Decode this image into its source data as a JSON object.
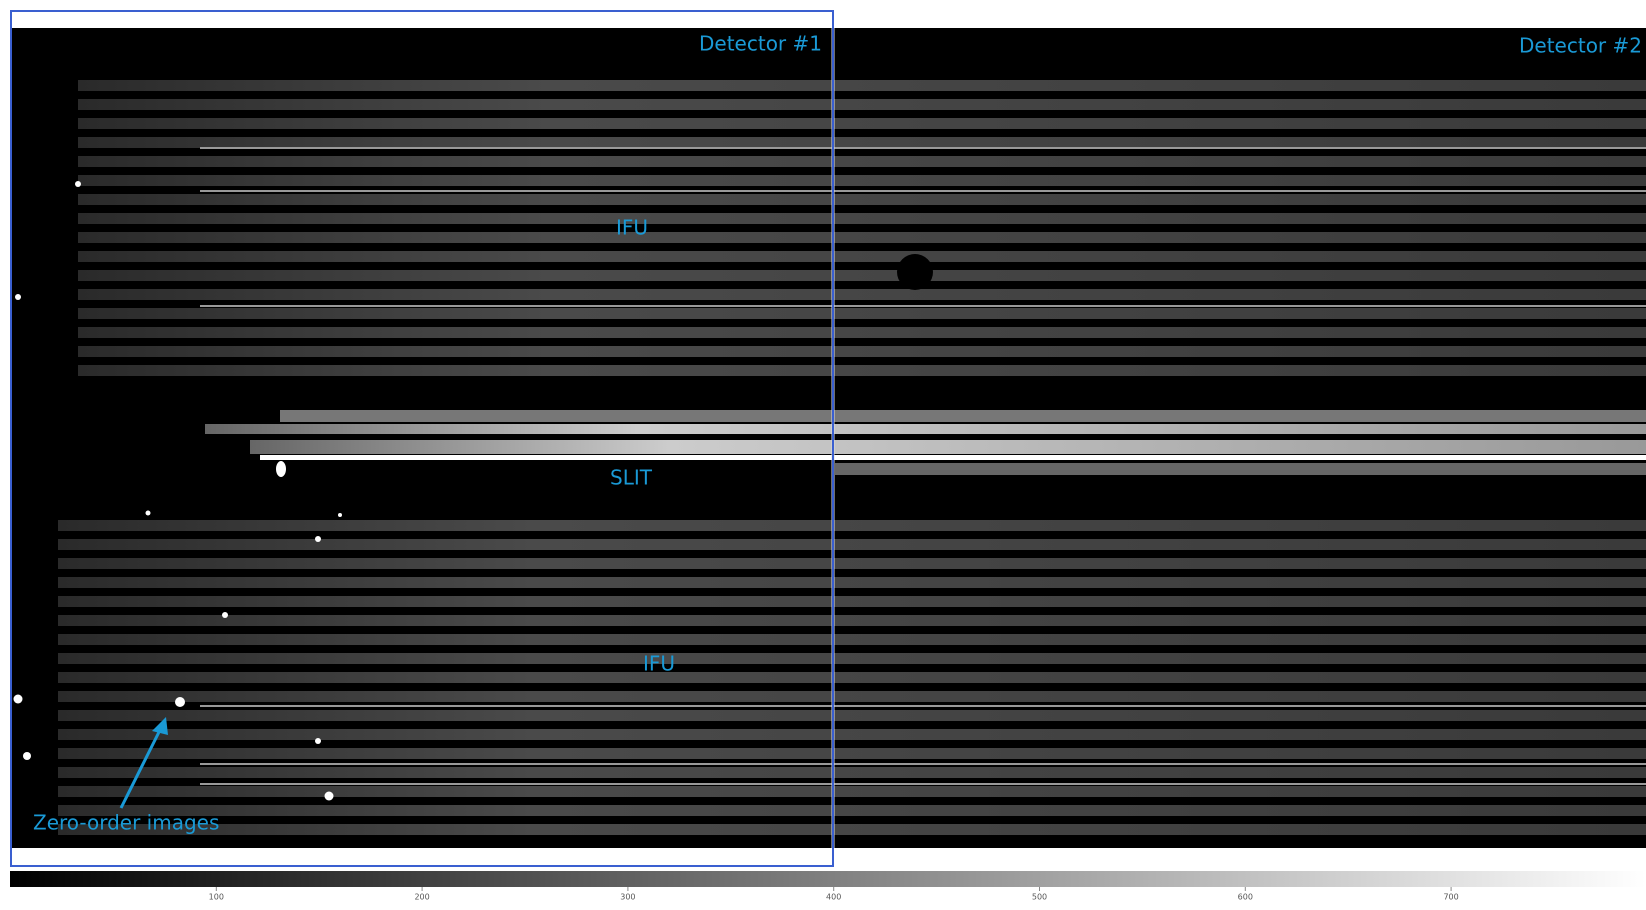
{
  "image": {
    "detectors": [
      "Detector #1",
      "Detector #2"
    ],
    "regions": {
      "upper": "IFU",
      "middle": "SLIT",
      "lower": "IFU"
    },
    "annotation": "Zero-order images"
  },
  "colorbar": {
    "ticks": [
      100,
      200,
      300,
      400,
      500,
      600,
      700
    ]
  }
}
